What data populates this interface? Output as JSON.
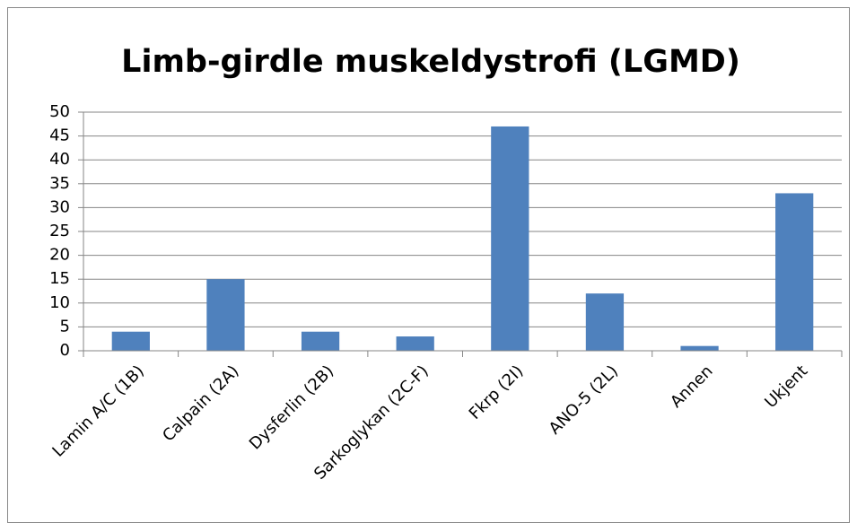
{
  "chart_data": {
    "type": "bar",
    "title": "Limb-girdle muskeldystrofi (LGMD)",
    "categories": [
      "Lamin A/C (1B)",
      "Calpain (2A)",
      "Dysferlin (2B)",
      "Sarkoglykan (2C-F)",
      "Fkrp (2I)",
      "ANO-5 (2L)",
      "Annen",
      "Ukjent"
    ],
    "values": [
      4,
      15,
      4,
      3,
      47,
      12,
      1,
      33
    ],
    "color": "#4f81bd",
    "ylim": [
      0,
      50
    ],
    "yticks": [
      0,
      5,
      10,
      15,
      20,
      25,
      30,
      35,
      40,
      45,
      50
    ],
    "grid": true
  }
}
